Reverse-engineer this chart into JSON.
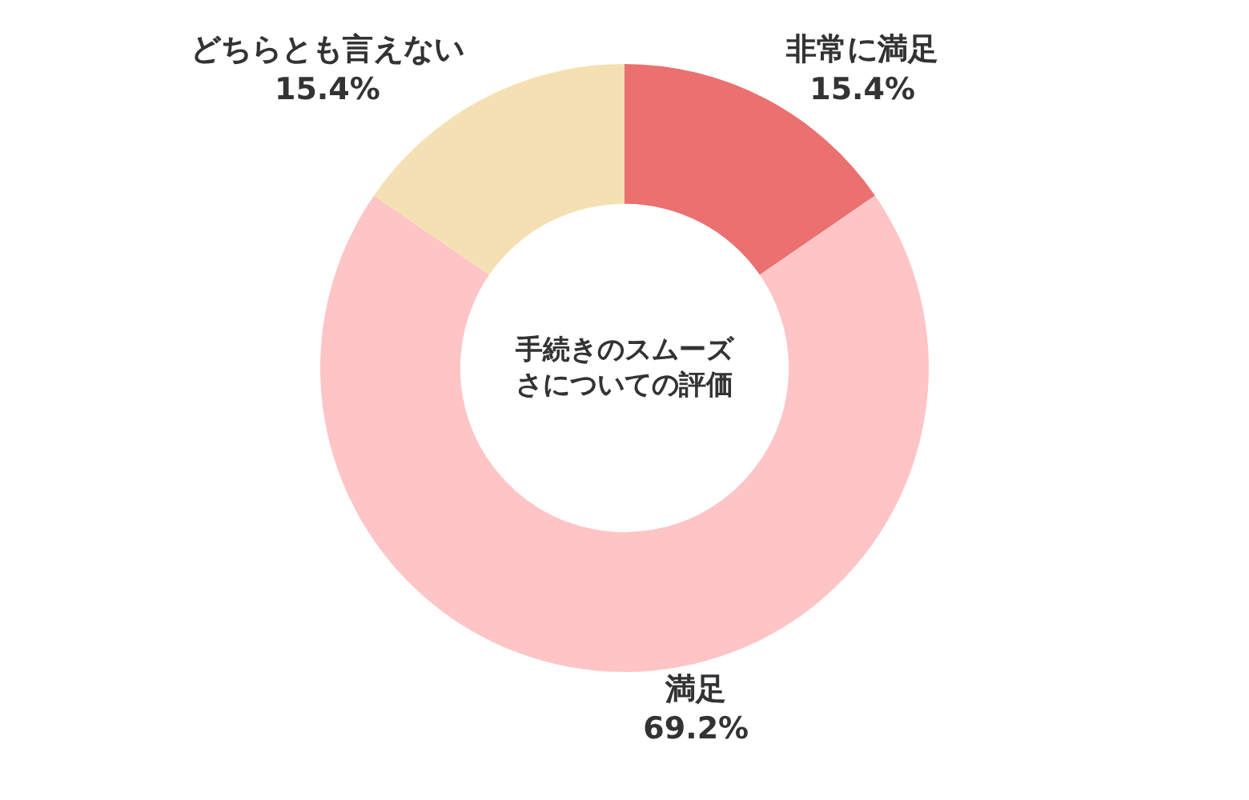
{
  "chart_data": {
    "type": "donut",
    "title": "手続きのスムーズさについての評価",
    "categories": [
      "非常に満足",
      "満足",
      "どちらとも言えない"
    ],
    "values": [
      15.4,
      69.2,
      15.4
    ],
    "colors": [
      "#eb7070",
      "#fec4c6",
      "#f4e0b2"
    ],
    "value_labels": [
      "15.4%",
      "69.2%",
      "15.4%"
    ],
    "legend": false
  }
}
